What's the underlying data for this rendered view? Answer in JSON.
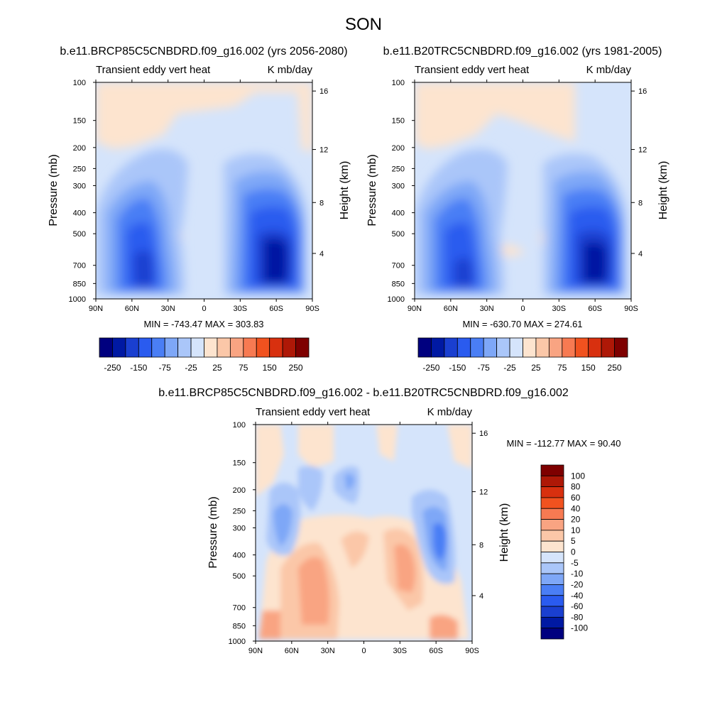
{
  "figure_title": "SON",
  "colors": {
    "palette_main": [
      "#00007f",
      "#0019a3",
      "#1a3fd0",
      "#2a5bef",
      "#4a7ef5",
      "#7ea7f7",
      "#aac6f9",
      "#d5e4fb",
      "#fde4cf",
      "#fbc7a8",
      "#f9a482",
      "#f77a52",
      "#f1521f",
      "#d8300f",
      "#ae1807",
      "#7e0000"
    ],
    "palette_diff": [
      "#00007f",
      "#0019a3",
      "#1a3fd0",
      "#2a5bef",
      "#4a7ef5",
      "#7ea7f7",
      "#aac6f9",
      "#d5e4fb",
      "#fde4cf",
      "#fbc7a8",
      "#f9a482",
      "#f77a52",
      "#f1521f",
      "#d8300f",
      "#ae1807",
      "#7e0000"
    ]
  },
  "chart_data": [
    {
      "type": "heatmap",
      "title": "b.e11.BRCP85C5CNBDRD.f09_g16.002 (yrs 2056-2080)",
      "left_string": "Transient eddy vert heat",
      "right_string": "K mb/day",
      "ylabel": "Pressure (mb)",
      "y2label": "Height (km)",
      "x_ticks": [
        "90N",
        "60N",
        "30N",
        "0",
        "30S",
        "60S",
        "90S"
      ],
      "y_ticks": [
        "100",
        "150",
        "200",
        "250",
        "300",
        "400",
        "500",
        "700",
        "850",
        "1000"
      ],
      "y2_ticks": [
        "16",
        "12",
        "8",
        "4"
      ],
      "stats": "MIN = -743.47  MAX = 303.83",
      "levels": [
        "-250",
        "-150",
        "-75",
        "-25",
        "25",
        "75",
        "150",
        "250"
      ],
      "min": -743.47,
      "max": 303.83
    },
    {
      "type": "heatmap",
      "title": "b.e11.B20TRC5CNBDRD.f09_g16.002 (yrs 1981-2005)",
      "left_string": "Transient eddy vert heat",
      "right_string": "K mb/day",
      "ylabel": "Pressure (mb)",
      "y2label": "Height (km)",
      "x_ticks": [
        "90N",
        "60N",
        "30N",
        "0",
        "30S",
        "60S",
        "90S"
      ],
      "y_ticks": [
        "100",
        "150",
        "200",
        "250",
        "300",
        "400",
        "500",
        "700",
        "850",
        "1000"
      ],
      "y2_ticks": [
        "16",
        "12",
        "8",
        "4"
      ],
      "stats": "MIN = -630.70  MAX = 274.61",
      "levels": [
        "-250",
        "-150",
        "-75",
        "-25",
        "25",
        "75",
        "150",
        "250"
      ],
      "min": -630.7,
      "max": 274.61
    },
    {
      "type": "heatmap",
      "title": "b.e11.BRCP85C5CNBDRD.f09_g16.002 - b.e11.B20TRC5CNBDRD.f09_g16.002",
      "left_string": "Transient eddy vert heat",
      "right_string": "K mb/day",
      "ylabel": "Pressure (mb)",
      "y2label": "Height (km)",
      "x_ticks": [
        "90N",
        "60N",
        "30N",
        "0",
        "30S",
        "60S",
        "90S"
      ],
      "y_ticks": [
        "100",
        "150",
        "200",
        "250",
        "300",
        "400",
        "500",
        "700",
        "850",
        "1000"
      ],
      "y2_ticks": [
        "16",
        "12",
        "8",
        "4"
      ],
      "stats": "MIN = -112.77  MAX =  90.40",
      "levels": [
        "100",
        "80",
        "60",
        "40",
        "20",
        "10",
        "5",
        "0",
        "-5",
        "-10",
        "-20",
        "-40",
        "-60",
        "-80",
        "-100"
      ],
      "min": -112.77,
      "max": 90.4
    }
  ]
}
